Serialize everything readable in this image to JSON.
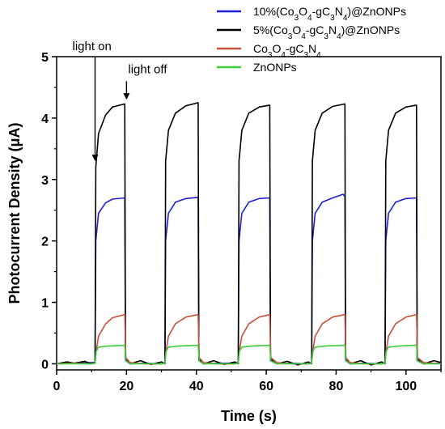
{
  "chart_data": {
    "type": "line",
    "xlabel": "Time (s)",
    "ylabel": "Photocurrent Density (μA)",
    "xlim": [
      0,
      110
    ],
    "ylim": [
      -0.1,
      5
    ],
    "xticks": [
      0,
      20,
      40,
      60,
      80,
      100
    ],
    "yticks": [
      0,
      1,
      2,
      3,
      4,
      5
    ],
    "grid": false,
    "legend_position": "top-right",
    "on_off_cycles": [
      {
        "on": 11,
        "off": 19.5
      },
      {
        "on": 31,
        "off": 40.5
      },
      {
        "on": 52,
        "off": 61
      },
      {
        "on": 73,
        "off": 82.5
      },
      {
        "on": 94,
        "off": 103
      }
    ],
    "series": [
      {
        "name_parts": [
          [
            "10%(Co",
            false
          ],
          [
            "3",
            true
          ],
          [
            "O",
            false
          ],
          [
            "4",
            true
          ],
          [
            "-gC",
            false
          ],
          [
            "3",
            true
          ],
          [
            "N",
            false
          ],
          [
            "4",
            true
          ],
          [
            ")@ZnONPs",
            false
          ]
        ],
        "color": "#1f1fd6",
        "rise_value": 2.0,
        "plateau": 2.7,
        "tau": 0.8,
        "baseline": 0.0,
        "points": [
          [
            0,
            0.0
          ],
          [
            5,
            0.01
          ],
          [
            10,
            0.02
          ],
          [
            11,
            0.02
          ],
          [
            11.2,
            2.0
          ],
          [
            12,
            2.45
          ],
          [
            14,
            2.62
          ],
          [
            16,
            2.68
          ],
          [
            19.5,
            2.7
          ],
          [
            19.7,
            0.05
          ],
          [
            21,
            0.0
          ],
          [
            25,
            0.01
          ],
          [
            30,
            0.0
          ],
          [
            31,
            0.02
          ],
          [
            31.2,
            2.0
          ],
          [
            32,
            2.45
          ],
          [
            34,
            2.63
          ],
          [
            37,
            2.69
          ],
          [
            40.5,
            2.71
          ],
          [
            40.7,
            0.05
          ],
          [
            42,
            0.0
          ],
          [
            46,
            0.01
          ],
          [
            51,
            0.01
          ],
          [
            52,
            0.02
          ],
          [
            52.2,
            2.0
          ],
          [
            53,
            2.45
          ],
          [
            55,
            2.63
          ],
          [
            58,
            2.69
          ],
          [
            61,
            2.7
          ],
          [
            61.2,
            0.05
          ],
          [
            63,
            0.0
          ],
          [
            67,
            0.01
          ],
          [
            72,
            0.0
          ],
          [
            73,
            0.02
          ],
          [
            73.2,
            2.0
          ],
          [
            74,
            2.45
          ],
          [
            76,
            2.63
          ],
          [
            79,
            2.7
          ],
          [
            82,
            2.76
          ],
          [
            82.5,
            2.72
          ],
          [
            82.7,
            0.05
          ],
          [
            84,
            0.0
          ],
          [
            88,
            0.01
          ],
          [
            93,
            0.0
          ],
          [
            94,
            0.02
          ],
          [
            94.2,
            2.0
          ],
          [
            95,
            2.45
          ],
          [
            97,
            2.63
          ],
          [
            100,
            2.69
          ],
          [
            103,
            2.7
          ],
          [
            103.2,
            0.05
          ],
          [
            105,
            0.0
          ],
          [
            110,
            0.01
          ]
        ]
      },
      {
        "name_parts": [
          [
            "5%(Co",
            false
          ],
          [
            "3",
            true
          ],
          [
            "O",
            false
          ],
          [
            "4",
            true
          ],
          [
            "-gC",
            false
          ],
          [
            "3",
            true
          ],
          [
            "N",
            false
          ],
          [
            "4",
            true
          ],
          [
            ")@ZnONPs",
            false
          ]
        ],
        "color": "#000000",
        "points": [
          [
            0,
            0.0
          ],
          [
            3,
            0.03
          ],
          [
            5,
            0.01
          ],
          [
            8,
            0.04
          ],
          [
            10,
            0.0
          ],
          [
            11,
            0.02
          ],
          [
            11.2,
            3.2
          ],
          [
            12,
            3.75
          ],
          [
            14,
            4.05
          ],
          [
            16,
            4.18
          ],
          [
            19.5,
            4.23
          ],
          [
            19.7,
            0.08
          ],
          [
            21,
            0.0
          ],
          [
            24,
            0.05
          ],
          [
            27,
            -0.01
          ],
          [
            30,
            0.03
          ],
          [
            31,
            0.0
          ],
          [
            31.2,
            3.3
          ],
          [
            32,
            3.8
          ],
          [
            34,
            4.08
          ],
          [
            37,
            4.2
          ],
          [
            40.5,
            4.25
          ],
          [
            40.7,
            0.08
          ],
          [
            42,
            0.0
          ],
          [
            45,
            0.05
          ],
          [
            48,
            -0.01
          ],
          [
            51,
            0.03
          ],
          [
            52,
            0.0
          ],
          [
            52.2,
            3.3
          ],
          [
            53,
            3.8
          ],
          [
            55,
            4.08
          ],
          [
            58,
            4.18
          ],
          [
            61,
            4.21
          ],
          [
            61.2,
            0.08
          ],
          [
            63,
            0.0
          ],
          [
            66,
            0.04
          ],
          [
            69,
            -0.02
          ],
          [
            72,
            0.03
          ],
          [
            73,
            0.0
          ],
          [
            73.2,
            3.3
          ],
          [
            74,
            3.8
          ],
          [
            76,
            4.08
          ],
          [
            79,
            4.19
          ],
          [
            82.5,
            4.23
          ],
          [
            82.7,
            0.08
          ],
          [
            84,
            0.0
          ],
          [
            87,
            0.05
          ],
          [
            90,
            -0.02
          ],
          [
            93,
            0.03
          ],
          [
            94,
            0.0
          ],
          [
            94.2,
            3.3
          ],
          [
            95,
            3.8
          ],
          [
            97,
            4.08
          ],
          [
            100,
            4.18
          ],
          [
            103,
            4.21
          ],
          [
            103.2,
            0.08
          ],
          [
            105,
            0.0
          ],
          [
            108,
            0.05
          ],
          [
            110,
            0.02
          ]
        ]
      },
      {
        "name_parts": [
          [
            "Co",
            false
          ],
          [
            "3",
            true
          ],
          [
            "O",
            false
          ],
          [
            "4",
            true
          ],
          [
            "-gC",
            false
          ],
          [
            "3",
            true
          ],
          [
            "N",
            false
          ],
          [
            "4",
            true
          ]
        ],
        "color": "#c8503c",
        "points": [
          [
            0,
            0.0
          ],
          [
            5,
            0.01
          ],
          [
            10,
            0.0
          ],
          [
            11,
            0.01
          ],
          [
            11.3,
            0.2
          ],
          [
            12,
            0.45
          ],
          [
            14,
            0.65
          ],
          [
            16,
            0.75
          ],
          [
            19.5,
            0.8
          ],
          [
            19.8,
            0.1
          ],
          [
            21,
            0.02
          ],
          [
            25,
            0.0
          ],
          [
            30,
            0.0
          ],
          [
            31,
            0.01
          ],
          [
            31.3,
            0.2
          ],
          [
            32,
            0.45
          ],
          [
            34,
            0.65
          ],
          [
            37,
            0.76
          ],
          [
            40.5,
            0.8
          ],
          [
            40.8,
            0.1
          ],
          [
            42,
            0.02
          ],
          [
            46,
            0.0
          ],
          [
            51,
            0.0
          ],
          [
            52,
            0.01
          ],
          [
            52.3,
            0.2
          ],
          [
            53,
            0.45
          ],
          [
            55,
            0.65
          ],
          [
            58,
            0.76
          ],
          [
            61,
            0.8
          ],
          [
            61.3,
            0.1
          ],
          [
            63,
            0.02
          ],
          [
            67,
            0.0
          ],
          [
            72,
            0.0
          ],
          [
            73,
            0.01
          ],
          [
            73.3,
            0.2
          ],
          [
            74,
            0.45
          ],
          [
            76,
            0.65
          ],
          [
            79,
            0.76
          ],
          [
            82.5,
            0.8
          ],
          [
            82.8,
            0.1
          ],
          [
            84,
            0.02
          ],
          [
            88,
            0.0
          ],
          [
            93,
            0.0
          ],
          [
            94,
            0.01
          ],
          [
            94.3,
            0.2
          ],
          [
            95,
            0.45
          ],
          [
            97,
            0.65
          ],
          [
            100,
            0.76
          ],
          [
            103,
            0.8
          ],
          [
            103.3,
            0.1
          ],
          [
            105,
            0.02
          ],
          [
            110,
            0.0
          ]
        ]
      },
      {
        "name_parts": [
          [
            "ZnONPs",
            false
          ]
        ],
        "color": "#3ccc3c",
        "points": [
          [
            0,
            0.0
          ],
          [
            5,
            0.0
          ],
          [
            10,
            0.0
          ],
          [
            11,
            0.01
          ],
          [
            11.3,
            0.2
          ],
          [
            12,
            0.27
          ],
          [
            15,
            0.29
          ],
          [
            19.5,
            0.3
          ],
          [
            19.8,
            0.05
          ],
          [
            21,
            0.0
          ],
          [
            25,
            0.0
          ],
          [
            30,
            0.0
          ],
          [
            31,
            0.01
          ],
          [
            31.3,
            0.2
          ],
          [
            32,
            0.27
          ],
          [
            35,
            0.29
          ],
          [
            40.5,
            0.3
          ],
          [
            40.8,
            0.05
          ],
          [
            42,
            0.0
          ],
          [
            46,
            0.0
          ],
          [
            51,
            0.0
          ],
          [
            52,
            0.01
          ],
          [
            52.3,
            0.2
          ],
          [
            53,
            0.27
          ],
          [
            56,
            0.29
          ],
          [
            61,
            0.3
          ],
          [
            61.3,
            0.05
          ],
          [
            63,
            0.0
          ],
          [
            67,
            0.0
          ],
          [
            72,
            0.0
          ],
          [
            73,
            0.01
          ],
          [
            73.3,
            0.2
          ],
          [
            74,
            0.27
          ],
          [
            77,
            0.29
          ],
          [
            82.5,
            0.3
          ],
          [
            82.8,
            0.05
          ],
          [
            84,
            0.0
          ],
          [
            88,
            0.0
          ],
          [
            93,
            0.0
          ],
          [
            94,
            0.01
          ],
          [
            94.3,
            0.2
          ],
          [
            95,
            0.27
          ],
          [
            98,
            0.29
          ],
          [
            103,
            0.3
          ],
          [
            103.3,
            0.05
          ],
          [
            105,
            0.0
          ],
          [
            110,
            0.0
          ]
        ]
      }
    ],
    "annotations": [
      {
        "id": "light-on",
        "text": "light on",
        "x": 11,
        "y_from": 5.0,
        "y_to": 3.3
      },
      {
        "id": "light-off",
        "text": "light off",
        "x": 20,
        "y_from": 4.6,
        "y_to": 4.3
      }
    ]
  }
}
